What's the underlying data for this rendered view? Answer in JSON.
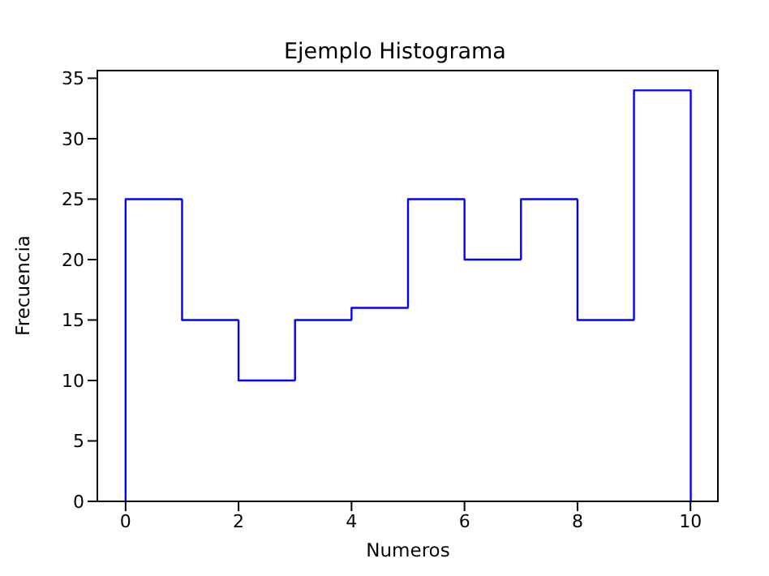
{
  "chart_data": {
    "type": "histogram",
    "title": "Ejemplo Histograma",
    "xlabel": "Numeros",
    "ylabel": "Frecuencia",
    "bins": [
      0,
      1,
      2,
      3,
      4,
      5,
      6,
      7,
      8,
      9,
      10
    ],
    "values": [
      25,
      15,
      10,
      15,
      16,
      25,
      20,
      25,
      15,
      34
    ],
    "color": "#0000ff",
    "xlim": [
      -0.5,
      10.5
    ],
    "xticks": [
      0,
      2,
      4,
      6,
      8,
      10
    ],
    "ylim": [
      0,
      35.7
    ],
    "yticks": [
      0,
      5,
      10,
      15,
      20,
      25,
      30,
      35
    ],
    "grid": false
  }
}
